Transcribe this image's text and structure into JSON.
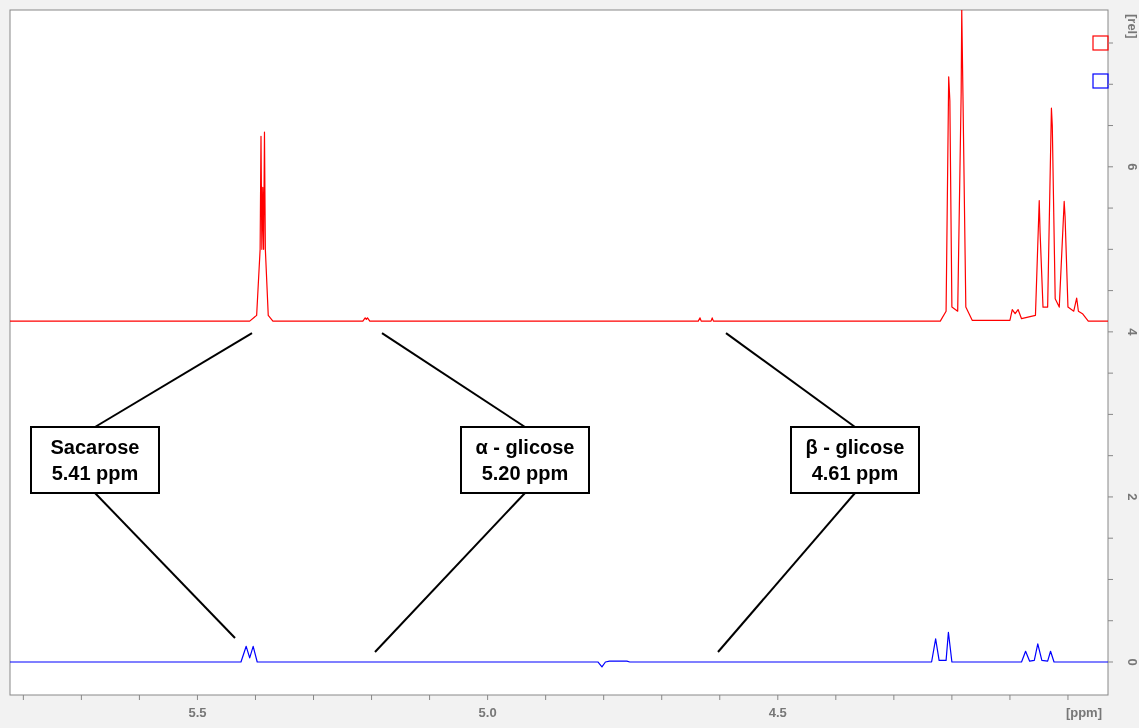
{
  "chart_data": {
    "type": "line",
    "xlabel": "[ppm]",
    "ylabel": "[rel]",
    "xlim": [
      5.823,
      3.931
    ],
    "ylim": [
      -0.4,
      7.9
    ],
    "xticks": [
      {
        "value": 5.8,
        "label": null
      },
      {
        "value": 5.7,
        "label": null
      },
      {
        "value": 5.6,
        "label": null
      },
      {
        "value": 5.5,
        "label": "5.5"
      },
      {
        "value": 5.4,
        "label": null
      },
      {
        "value": 5.3,
        "label": null
      },
      {
        "value": 5.2,
        "label": null
      },
      {
        "value": 5.1,
        "label": null
      },
      {
        "value": 5.0,
        "label": "5.0"
      },
      {
        "value": 4.9,
        "label": null
      },
      {
        "value": 4.8,
        "label": null
      },
      {
        "value": 4.7,
        "label": null
      },
      {
        "value": 4.6,
        "label": null
      },
      {
        "value": 4.5,
        "label": "4.5"
      },
      {
        "value": 4.4,
        "label": null
      },
      {
        "value": 4.3,
        "label": null
      },
      {
        "value": 4.2,
        "label": null
      },
      {
        "value": 4.1,
        "label": null
      },
      {
        "value": 4.0,
        "label": null
      }
    ],
    "yticks": [
      0,
      {
        "value": 0.5,
        "label": null
      },
      {
        "value": 1,
        "label": null
      },
      {
        "value": 1.5,
        "label": null
      },
      2,
      {
        "value": 2.5,
        "label": null
      },
      {
        "value": 3,
        "label": null
      },
      {
        "value": 3.5,
        "label": null
      },
      4,
      {
        "value": 4.5,
        "label": null
      },
      {
        "value": 5,
        "label": null
      },
      {
        "value": 5.5,
        "label": null
      },
      6,
      {
        "value": 6.5,
        "label": null
      },
      {
        "value": 7,
        "label": null
      },
      {
        "value": 7.5,
        "label": null
      }
    ],
    "grid": false,
    "line_style": "solid",
    "series": [
      {
        "color": "#ff0000",
        "x": [
          5.823,
          5.41,
          5.398,
          5.392,
          5.3905,
          5.389,
          5.3875,
          5.386,
          5.3845,
          5.383,
          5.378,
          5.37,
          5.215,
          5.211,
          5.209,
          5.207,
          5.203,
          4.637,
          4.634,
          4.632,
          4.615,
          4.613,
          4.611,
          4.22,
          4.21,
          4.2055,
          4.2035,
          4.2,
          4.19,
          4.184,
          4.183,
          4.181,
          4.176,
          4.165,
          4.1,
          4.096,
          4.091,
          4.086,
          4.08,
          4.056,
          4.0495,
          4.048,
          4.043,
          4.035,
          4.0285,
          4.027,
          4.022,
          4.015,
          4.0065,
          4.005,
          4.0,
          3.99,
          3.985,
          3.982,
          3.975,
          3.965,
          3.931
        ],
        "values": [
          4.13,
          4.13,
          4.2,
          5.0,
          6.37,
          5.0,
          5.75,
          5.0,
          6.42,
          5.0,
          4.2,
          4.13,
          4.13,
          4.17,
          4.15,
          4.17,
          4.13,
          4.13,
          4.17,
          4.13,
          4.13,
          4.17,
          4.13,
          4.13,
          4.25,
          7.09,
          6.8,
          4.3,
          4.25,
          6.9,
          7.9,
          6.9,
          4.3,
          4.14,
          4.14,
          4.27,
          4.22,
          4.27,
          4.16,
          4.2,
          5.59,
          5.2,
          4.3,
          4.3,
          6.71,
          6.5,
          4.4,
          4.3,
          5.58,
          5.4,
          4.3,
          4.25,
          4.41,
          4.25,
          4.22,
          4.13,
          4.13
        ]
      },
      {
        "color": "#0000ff",
        "x": [
          5.823,
          5.425,
          5.416,
          5.41,
          5.404,
          5.397,
          4.81,
          4.803,
          4.797,
          4.79,
          4.76,
          4.755,
          4.235,
          4.228,
          4.222,
          4.21,
          4.206,
          4.2,
          4.08,
          4.073,
          4.066,
          4.058,
          4.052,
          4.045,
          4.035,
          4.03,
          4.024,
          3.931
        ],
        "values": [
          0,
          0,
          0.19,
          0.05,
          0.19,
          0,
          0,
          -0.06,
          0,
          0.01,
          0.01,
          0,
          0,
          0.28,
          0.02,
          0.02,
          0.36,
          0,
          0,
          0.13,
          0.01,
          0.02,
          0.22,
          0.02,
          0.01,
          0.13,
          0,
          0
        ]
      }
    ],
    "annotations": [
      "Sacarose\n5.41 ppm",
      "α - glicose\n5.20 ppm",
      "β - glicose\n4.61 ppm"
    ]
  }
}
